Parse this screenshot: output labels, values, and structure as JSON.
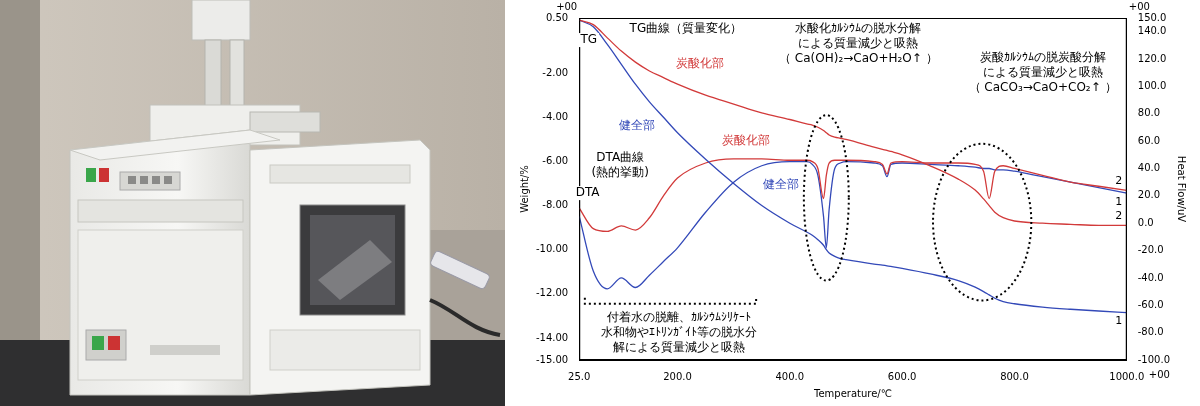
{
  "chart_data": {
    "type": "line",
    "x_label": "Temperature/℃",
    "y_label": "Weight/%",
    "y2_label": "Heat Flow/uV",
    "axis_exponents": {
      "x": "+00",
      "y": "+00",
      "y2": "+00"
    },
    "grid": false,
    "x": [
      25,
      50,
      75,
      100,
      125,
      150,
      175,
      200,
      250,
      300,
      350,
      400,
      430,
      440,
      450,
      460,
      465,
      470,
      480,
      490,
      500,
      550,
      565,
      573,
      580,
      600,
      650,
      700,
      730,
      745,
      755,
      765,
      780,
      800,
      850,
      900,
      950,
      1000
    ],
    "xlim": [
      25,
      1000
    ],
    "xticks": [
      {
        "value": 25,
        "label": "25.0"
      },
      {
        "value": 200,
        "label": "200.0"
      },
      {
        "value": 400,
        "label": "400.0"
      },
      {
        "value": 600,
        "label": "600.0"
      },
      {
        "value": 800,
        "label": "800.0"
      },
      {
        "value": 1000,
        "label": "1000.0"
      }
    ],
    "ylim": [
      -15,
      0.5
    ],
    "yticks": [
      {
        "value": 0.5,
        "label": "0.50"
      },
      {
        "value": -2,
        "label": "-2.00"
      },
      {
        "value": -4,
        "label": "-4.00"
      },
      {
        "value": -6,
        "label": "-6.00"
      },
      {
        "value": -8,
        "label": "-8.00"
      },
      {
        "value": -10,
        "label": "-10.00"
      },
      {
        "value": -12,
        "label": "-12.00"
      },
      {
        "value": -14,
        "label": "-14.00"
      },
      {
        "value": -15,
        "label": "-15.00"
      }
    ],
    "y2lim": [
      -100,
      150
    ],
    "y2ticks": [
      {
        "value": -100,
        "label": "-100.0"
      },
      {
        "value": -80,
        "label": "-80.0"
      },
      {
        "value": -60,
        "label": "-60.0"
      },
      {
        "value": -40,
        "label": "-40.0"
      },
      {
        "value": -20,
        "label": "-20.0"
      },
      {
        "value": 0,
        "label": "0.0"
      },
      {
        "value": 20,
        "label": "20.0"
      },
      {
        "value": 40,
        "label": "40.0"
      },
      {
        "value": 60,
        "label": "60.0"
      },
      {
        "value": 80,
        "label": "80.0"
      },
      {
        "value": 100,
        "label": "100.0"
      },
      {
        "value": 120,
        "label": "120.0"
      },
      {
        "value": 140,
        "label": "140.0"
      },
      {
        "value": 150,
        "label": "150.0"
      }
    ],
    "series": [
      {
        "name": "炭酸化部",
        "color": "#d23a3a",
        "end_label": "2",
        "name_position": [
          240,
          -1.6
        ],
        "values": [
          0.4,
          0.2,
          -0.4,
          -1.0,
          -1.5,
          -1.9,
          -2.2,
          -2.5,
          -3.0,
          -3.4,
          -3.8,
          -4.1,
          -4.3,
          -4.35,
          -4.45,
          -4.6,
          -4.7,
          -4.8,
          -4.9,
          -4.95,
          -5.0,
          -5.35,
          -5.45,
          -5.5,
          -5.55,
          -5.7,
          -6.2,
          -6.8,
          -7.3,
          -7.7,
          -8.0,
          -8.3,
          -8.55,
          -8.7,
          -8.8,
          -8.85,
          -8.9,
          -8.9
        ]
      },
      {
        "name": "健全部",
        "color": "#3349b8",
        "end_label": "1",
        "name_position": [
          128,
          -4.4
        ],
        "values": [
          0.4,
          0.1,
          -0.7,
          -1.6,
          -2.5,
          -3.3,
          -4.0,
          -4.7,
          -5.9,
          -7.0,
          -8.0,
          -8.8,
          -9.2,
          -9.35,
          -9.55,
          -9.8,
          -10.0,
          -10.15,
          -10.3,
          -10.4,
          -10.45,
          -10.65,
          -10.7,
          -10.73,
          -10.76,
          -10.85,
          -11.1,
          -11.4,
          -11.7,
          -11.9,
          -12.05,
          -12.2,
          -12.35,
          -12.45,
          -12.6,
          -12.7,
          -12.78,
          -12.85
        ]
      },
      {
        "name": "炭酸化部",
        "color": "#d23a3a",
        "axis": "y2",
        "end_label": "2",
        "name_position": [
          322,
          60
        ],
        "values": [
          11,
          -4,
          -6,
          -2,
          -5,
          4,
          20,
          33,
          44,
          47,
          47,
          46,
          46,
          45,
          40,
          18,
          35,
          44,
          46,
          46,
          46,
          45,
          43,
          36,
          44,
          45,
          44,
          44,
          43,
          38,
          18,
          38,
          42,
          40,
          35,
          30,
          27,
          24
        ]
      },
      {
        "name": "健全部",
        "color": "#3349b8",
        "axis": "y2",
        "end_label": "1",
        "name_position": [
          385,
          28
        ],
        "values": [
          5,
          -35,
          -48,
          -40,
          -47,
          -38,
          -28,
          -18,
          8,
          30,
          42,
          45,
          45,
          43,
          35,
          5,
          -18,
          10,
          40,
          44,
          45,
          44,
          42,
          34,
          43,
          44,
          43,
          42,
          41,
          40,
          40,
          39,
          39,
          38,
          34,
          30,
          26,
          22
        ]
      }
    ],
    "annotations": [
      {
        "lines": [
          "TG"
        ],
        "x": 42,
        "y": -0.5,
        "axis": "y"
      },
      {
        "lines": [
          "TG曲線（質量変化）"
        ],
        "x": 215,
        "y": 0.0,
        "axis": "y"
      },
      {
        "lines": [
          "DTA"
        ],
        "x": 40,
        "y": 22,
        "axis": "y2"
      },
      {
        "lines": [
          "DTA曲線",
          "(熱的挙動)"
        ],
        "x": 98,
        "y": 48,
        "axis": "y2"
      },
      {
        "lines": [
          "水酸化ｶﾙｼｳﾑの脱水分解",
          "による質量減少と吸熱",
          "（ Ca(OH)₂→CaO+H₂O↑ ）"
        ],
        "x": 522,
        "y": 0.0,
        "axis": "y"
      },
      {
        "lines": [
          "炭酸ｶﾙｼｳﾑの脱炭酸分解",
          "による質量減少と吸熱",
          "（ CaCO₃→CaO+CO₂↑ ）"
        ],
        "x": 850,
        "y": -1.3,
        "axis": "y"
      },
      {
        "lines": [
          "付着水の脱離、ｶﾙｼｳﾑｼﾘｹｰﾄ",
          "水和物やｴﾄﾘﾝｶﾞｲﾄ等の脱水分",
          "解による質量減少と吸熱"
        ],
        "x": 202,
        "y": -13.1,
        "axis": "y"
      }
    ],
    "regions": [
      {
        "x": [
          425,
          505
        ],
        "y": [
          -11.4,
          -3.9
        ]
      },
      {
        "x": [
          655,
          830
        ],
        "y": [
          -12.3,
          -5.2
        ]
      }
    ],
    "brackets": [
      {
        "x": [
          35,
          340
        ],
        "y": -12.45
      }
    ]
  }
}
